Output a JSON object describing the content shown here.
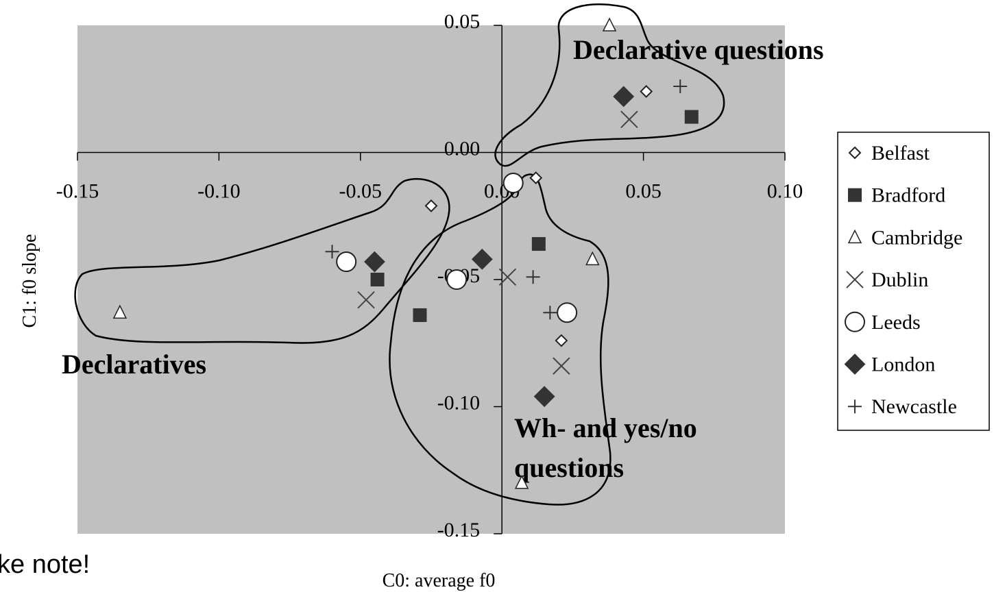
{
  "chart_data": {
    "type": "scatter",
    "x_label": "C0: average f0",
    "y_label": "C1: f0 slope",
    "xlim": [
      -0.15,
      0.1
    ],
    "ylim": [
      -0.15,
      0.05
    ],
    "xticks": [
      -0.15,
      {
        "value": -0.1,
        "label": "-0.10"
      },
      -0.05,
      {
        "value": 0,
        "label": "0.00"
      },
      0.05,
      {
        "value": 0.1,
        "label": "0.10"
      }
    ],
    "yticks": [
      -0.15,
      {
        "value": -0.1,
        "label": "-0.10"
      },
      -0.05,
      {
        "value": 0,
        "label": "0.00"
      },
      0.05
    ],
    "grid": false,
    "legend": "right",
    "background": "#c0c0c0",
    "annotations": [
      {
        "lines": [
          "Declarative questions"
        ]
      },
      {
        "lines": [
          "Declaratives"
        ]
      },
      {
        "lines": [
          "Wh- and yes/no",
          "questions"
        ]
      }
    ],
    "slide_text": "ke note!",
    "series": [
      {
        "name": "Belfast",
        "marker": "diamond-open",
        "color": "#222222",
        "x": [
          0.051,
          0.012,
          -0.025,
          0.021
        ],
        "values": [
          0.024,
          -0.01,
          -0.021,
          -0.074
        ]
      },
      {
        "name": "Bradford",
        "marker": "square",
        "color": "#333333",
        "x": [
          0.067,
          0.013,
          -0.044,
          -0.029
        ],
        "values": [
          0.014,
          -0.036,
          -0.05,
          -0.064
        ]
      },
      {
        "name": "Cambridge",
        "marker": "triangle-open",
        "color": "#222222",
        "x": [
          0.038,
          0.032,
          -0.135,
          0.007
        ],
        "values": [
          0.05,
          -0.042,
          -0.063,
          -0.13
        ]
      },
      {
        "name": "Dublin",
        "marker": "x",
        "color": "#444444",
        "x": [
          0.045,
          -0.048,
          0.002,
          0.021
        ],
        "values": [
          0.013,
          -0.058,
          -0.049,
          -0.084
        ]
      },
      {
        "name": "Leeds",
        "marker": "circle-open",
        "color": "#222222",
        "x": [
          0.004,
          -0.055,
          -0.016,
          0.023
        ],
        "values": [
          -0.012,
          -0.043,
          -0.05,
          -0.063
        ]
      },
      {
        "name": "London",
        "marker": "diamond",
        "color": "#333333",
        "x": [
          0.043,
          -0.045,
          -0.007,
          0.015
        ],
        "values": [
          0.022,
          -0.043,
          -0.042,
          -0.096
        ]
      },
      {
        "name": "Newcastle",
        "marker": "plus",
        "color": "#333333",
        "x": [
          0.063,
          -0.06,
          0.011,
          0.017
        ],
        "values": [
          0.026,
          -0.039,
          -0.049,
          -0.063
        ]
      }
    ]
  }
}
